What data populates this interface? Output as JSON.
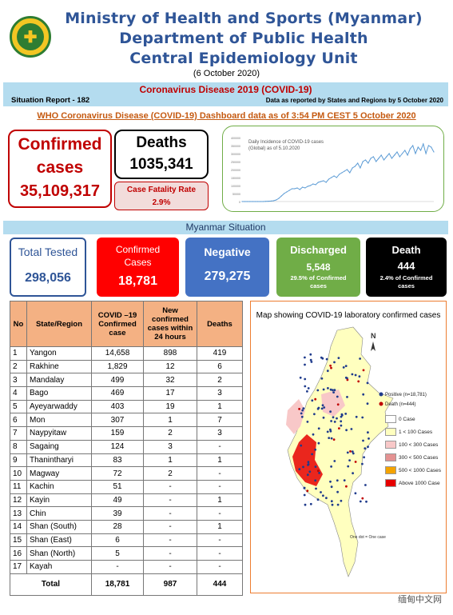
{
  "header": {
    "line1": "Ministry of Health and Sports (Myanmar)",
    "line2": "Department of Public Health",
    "line3": "Central Epidemiology Unit",
    "date": "(6 October 2020)"
  },
  "banner": {
    "title": "Coronavirus Disease 2019 (COVID-19)",
    "report": "Situation Report - 182",
    "note": "Data as reported by States and Regions by 5 October 2020"
  },
  "who_line": "WHO Coronavirus Disease (COVID-19) Dashboard data as of 3:54 PM CEST 5 October 2020",
  "global": {
    "confirmed_l1": "Confirmed",
    "confirmed_l2": "cases",
    "confirmed_value": "35,109,317",
    "deaths_label": "Deaths",
    "deaths_value": "1035,341",
    "cfr_label": "Case Fatality Rate",
    "cfr_value": "2.9%"
  },
  "chart_data": {
    "type": "line",
    "title": "Daily Incidence of COVID-19 cases (Global) as of 5.10.2020",
    "yticks": [
      "400000",
      "350000",
      "300000",
      "250000",
      "200000",
      "150000",
      "100000",
      "50000",
      "0"
    ],
    "ylim": [
      0,
      400000
    ],
    "values": [
      0,
      0,
      0,
      0,
      0,
      0,
      0,
      0,
      0,
      1000,
      2000,
      3000,
      5000,
      10000,
      20000,
      35000,
      50000,
      60000,
      70000,
      80000,
      80000,
      85000,
      75000,
      90000,
      85000,
      95000,
      100000,
      110000,
      105000,
      120000,
      125000,
      130000,
      120000,
      140000,
      150000,
      160000,
      150000,
      170000,
      180000,
      190000,
      200000,
      180000,
      210000,
      220000,
      240000,
      210000,
      250000,
      260000,
      240000,
      270000,
      280000,
      250000,
      270000,
      290000,
      260000,
      280000,
      300000,
      270000,
      290000,
      310000,
      280000,
      300000,
      320000,
      290000,
      330000,
      350000,
      300000,
      340000,
      320000,
      360000,
      300000,
      350000,
      340000,
      310000
    ]
  },
  "myanmar_title": "Myanmar Situation",
  "cards": {
    "tested_label": "Total Tested",
    "tested_value": "298,056",
    "confirmed_l1": "Confirmed",
    "confirmed_l2": "Cases",
    "confirmed_value": "18,781",
    "negative_label": "Negative",
    "negative_value": "279,275",
    "discharged_label": "Discharged",
    "discharged_value": "5,548",
    "discharged_sub1": "29.5% of Confirmed",
    "discharged_sub2": "cases",
    "death_label": "Death",
    "death_value": "444",
    "death_sub1": "2.4% of Confirmed",
    "death_sub2": "cases",
    "colors": {
      "confirmed": "#ff0000",
      "negative": "#4472c4",
      "discharged": "#70ad47",
      "death": "#000000"
    }
  },
  "table": {
    "headers": [
      "No",
      "State/Region",
      "COVID –19 Confirmed case",
      "New confirmed cases within 24 hours",
      "Deaths"
    ],
    "rows": [
      [
        "1",
        "Yangon",
        "14,658",
        "898",
        "419"
      ],
      [
        "2",
        "Rakhine",
        "1,829",
        "12",
        "6"
      ],
      [
        "3",
        "Mandalay",
        "499",
        "32",
        "2"
      ],
      [
        "4",
        "Bago",
        "469",
        "17",
        "3"
      ],
      [
        "5",
        "Ayeyarwaddy",
        "403",
        "19",
        "1"
      ],
      [
        "6",
        "Mon",
        "307",
        "1",
        "7"
      ],
      [
        "7",
        "Naypyitaw",
        "159",
        "2",
        "3"
      ],
      [
        "8",
        "Sagaing",
        "124",
        "3",
        "-"
      ],
      [
        "9",
        "Thanintharyi",
        "83",
        "1",
        "1"
      ],
      [
        "10",
        "Magway",
        "72",
        "2",
        "-"
      ],
      [
        "11",
        "Kachin",
        "51",
        "-",
        "-"
      ],
      [
        "12",
        "Kayin",
        "49",
        "-",
        "1"
      ],
      [
        "13",
        "Chin",
        "39",
        "-",
        "-"
      ],
      [
        "14",
        "Shan (South)",
        "28",
        "-",
        "1"
      ],
      [
        "15",
        "Shan (East)",
        "6",
        "-",
        "-"
      ],
      [
        "16",
        "Shan (North)",
        "5",
        "-",
        "-"
      ],
      [
        "17",
        "Kayah",
        "-",
        "-",
        "-"
      ]
    ],
    "total": [
      "Total",
      "18,781",
      "987",
      "444"
    ]
  },
  "map": {
    "title": "Map showing COVID-19 laboratory confirmed cases",
    "positive": "Positive (n=18,781)",
    "death": "Death (n=444)",
    "legend": [
      {
        "label": "0 Case",
        "color": "#ffffff"
      },
      {
        "label": "1 < 100 Cases",
        "color": "#ffffbf"
      },
      {
        "label": "100 < 300 Cases",
        "color": "#f8c8c8"
      },
      {
        "label": "300 < 500 Cases",
        "color": "#e49292"
      },
      {
        "label": "500 < 1000 Cases",
        "color": "#f4a300"
      },
      {
        "label": "Above 1000 Case",
        "color": "#e60000"
      }
    ],
    "dot_note": "One dot = One case",
    "compass": "N"
  },
  "watermark": "缅甸中文网"
}
